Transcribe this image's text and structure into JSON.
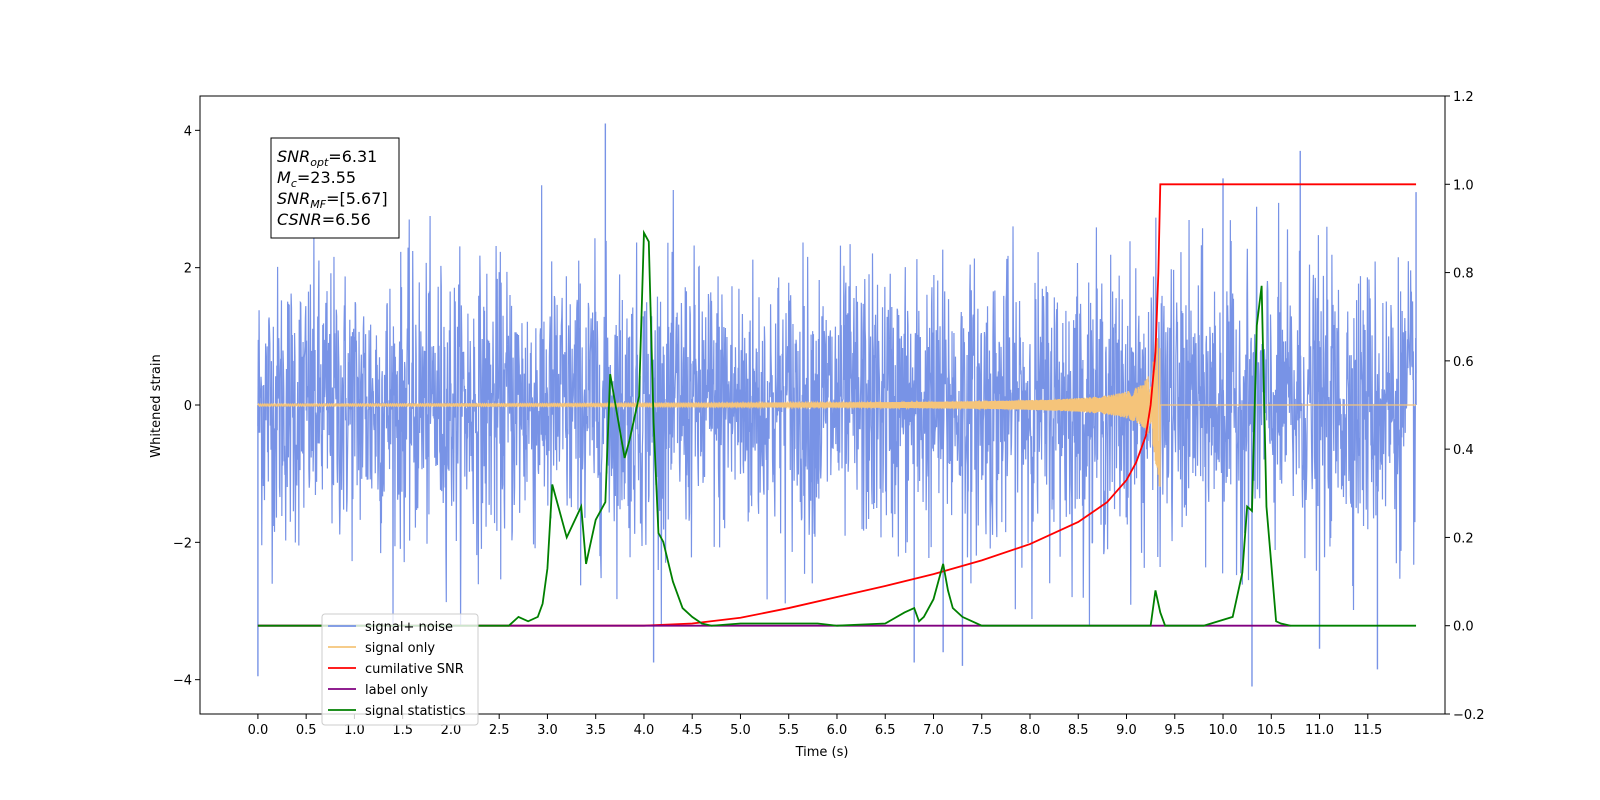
{
  "chart_data": {
    "type": "line",
    "title": "",
    "xlabel": "Time (s)",
    "ylabel": "Whitened strain",
    "y2label": "",
    "xlim": [
      -0.6,
      12.3
    ],
    "ylim": [
      -4.5,
      4.5
    ],
    "y2lim": [
      -0.2,
      1.2
    ],
    "xticks": [
      0.0,
      0.5,
      1.0,
      1.5,
      2.0,
      2.5,
      3.0,
      3.5,
      4.0,
      4.5,
      5.0,
      5.5,
      6.0,
      6.5,
      7.0,
      7.5,
      8.0,
      8.5,
      9.0,
      9.5,
      10.0,
      10.5,
      11.0,
      11.5
    ],
    "xtick_labels": [
      "0.0",
      "0.5",
      "1.0",
      "1.5",
      "2.0",
      "2.5",
      "3.0",
      "3.5",
      "4.0",
      "4.5",
      "5.0",
      "5.5",
      "6.0",
      "6.5",
      "7.0",
      "7.5",
      "8.0",
      "8.5",
      "9.0",
      "9.5",
      "10.0",
      "10.5",
      "11.0",
      "11.5"
    ],
    "yticks": [
      -4,
      -2,
      0,
      2,
      4
    ],
    "ytick_labels": [
      "−4",
      "−2",
      "0",
      "2",
      "4"
    ],
    "y2ticks": [
      -0.2,
      0.0,
      0.2,
      0.4,
      0.6,
      0.8,
      1.0,
      1.2
    ],
    "y2tick_labels": [
      "−0.2",
      "0.0",
      "0.2",
      "0.4",
      "0.6",
      "0.8",
      "1.0",
      "1.2"
    ],
    "grid": false,
    "legend_position": "bottom-left",
    "noise_band": {
      "t_start": 0.0,
      "t_end": 12.0,
      "typical_amplitude": 1.6,
      "peak_points": [
        {
          "t": 0.0,
          "v": -3.95
        },
        {
          "t": 3.6,
          "v": 4.1
        },
        {
          "t": 4.1,
          "v": -3.75
        },
        {
          "t": 6.8,
          "v": -3.75
        },
        {
          "t": 7.1,
          "v": -3.6
        },
        {
          "t": 7.3,
          "v": -3.8
        },
        {
          "t": 10.0,
          "v": 3.3
        },
        {
          "t": 10.3,
          "v": -4.1
        },
        {
          "t": 10.8,
          "v": 3.7
        },
        {
          "t": 11.0,
          "v": -3.55
        },
        {
          "t": 11.6,
          "v": -3.85
        },
        {
          "t": 12.0,
          "v": 3.1
        }
      ]
    },
    "series": [
      {
        "name": "signal+ noise",
        "axis": "left",
        "color": "#7893e6",
        "kind": "noise"
      },
      {
        "name": "signal only",
        "axis": "left",
        "color": "#f5c47a",
        "kind": "chirp",
        "merger_time": 9.35,
        "peak_amplitude": 1.25,
        "end_time": 12.0
      },
      {
        "name": "cumilative SNR",
        "axis": "right",
        "color": "#ff0000",
        "x": [
          0.0,
          4.0,
          4.5,
          5.0,
          5.5,
          6.0,
          6.5,
          7.0,
          7.5,
          8.0,
          8.5,
          8.8,
          9.0,
          9.1,
          9.2,
          9.25,
          9.3,
          9.33,
          9.35,
          9.4,
          12.0
        ],
        "values": [
          0.0,
          0.0,
          0.005,
          0.018,
          0.04,
          0.065,
          0.09,
          0.117,
          0.148,
          0.185,
          0.235,
          0.28,
          0.33,
          0.37,
          0.43,
          0.5,
          0.62,
          0.8,
          1.0,
          1.0,
          1.0
        ]
      },
      {
        "name": "label only",
        "axis": "right",
        "color": "#800080",
        "x": [
          0.0,
          10.7
        ],
        "values": [
          0.0,
          0.0
        ]
      },
      {
        "name": "signal statistics",
        "axis": "right",
        "color": "#008000",
        "x": [
          0.0,
          2.6,
          2.7,
          2.8,
          2.9,
          2.95,
          3.0,
          3.05,
          3.2,
          3.35,
          3.4,
          3.5,
          3.6,
          3.65,
          3.8,
          3.85,
          3.95,
          4.0,
          4.05,
          4.1,
          4.15,
          4.2,
          4.3,
          4.4,
          4.5,
          4.6,
          4.7,
          5.0,
          5.5,
          5.8,
          6.0,
          6.5,
          6.7,
          6.8,
          6.85,
          6.9,
          7.0,
          7.1,
          7.15,
          7.2,
          7.3,
          7.5,
          8.0,
          8.5,
          9.0,
          9.25,
          9.3,
          9.35,
          9.4,
          9.5,
          9.8,
          10.1,
          10.2,
          10.25,
          10.3,
          10.35,
          10.4,
          10.45,
          10.55,
          10.6,
          10.7,
          12.0
        ],
        "values": [
          0.0,
          0.0,
          0.02,
          0.01,
          0.02,
          0.05,
          0.13,
          0.32,
          0.2,
          0.27,
          0.14,
          0.24,
          0.28,
          0.57,
          0.38,
          0.42,
          0.52,
          0.89,
          0.87,
          0.46,
          0.21,
          0.19,
          0.1,
          0.04,
          0.02,
          0.005,
          0.0,
          0.005,
          0.005,
          0.005,
          0.0,
          0.005,
          0.03,
          0.04,
          0.01,
          0.02,
          0.06,
          0.14,
          0.08,
          0.04,
          0.02,
          0.0,
          0.0,
          0.0,
          0.0,
          0.0,
          0.08,
          0.03,
          0.0,
          0.0,
          0.0,
          0.02,
          0.12,
          0.27,
          0.26,
          0.68,
          0.77,
          0.27,
          0.01,
          0.005,
          0.0,
          0.0
        ]
      }
    ],
    "annotation": {
      "lines": [
        {
          "main": "SNR",
          "sub": "opt",
          "rest": "=6.31"
        },
        {
          "main": "M",
          "sub": "c",
          "rest": "=23.55"
        },
        {
          "main": "SNR",
          "sub": "MF",
          "rest": "=[5.67]"
        },
        {
          "main": "CSNR",
          "sub": "",
          "rest": "=6.56"
        }
      ]
    },
    "legend": [
      {
        "label": "signal+ noise",
        "color": "#7893e6"
      },
      {
        "label": "signal only",
        "color": "#f5c47a"
      },
      {
        "label": "cumilative SNR",
        "color": "#ff0000"
      },
      {
        "label": "label only",
        "color": "#800080"
      },
      {
        "label": "signal statistics",
        "color": "#008000"
      }
    ]
  }
}
